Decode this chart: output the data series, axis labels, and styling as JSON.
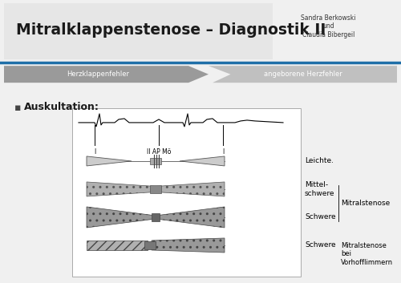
{
  "title": "Mitralklappenstenose – Diagnostik II",
  "subtitle_name": "Sandra Berkowski\nund\nClaudia Bibergeil",
  "nav_label1": "Herzklappenfehler",
  "nav_label2": "angeborene Herzfehler",
  "bullet_label": "Auskultation:",
  "background_color": "#f0f0f0",
  "title_color": "#1a1a1a",
  "blue_line_color": "#1f6fa8",
  "nav_color1": "#9a9a9a",
  "nav_color2": "#c0c0c0",
  "diagram_labels": [
    "Leichte.",
    "Mittel-\nschwere",
    "Schwere",
    "Schwere"
  ],
  "diagram_right_labels": [
    "",
    "Mitralstenose",
    "",
    "Mitralstenose\nbei\nVorhofflimmern"
  ],
  "marker_labels": [
    "I",
    "II AP Mö",
    "I"
  ]
}
